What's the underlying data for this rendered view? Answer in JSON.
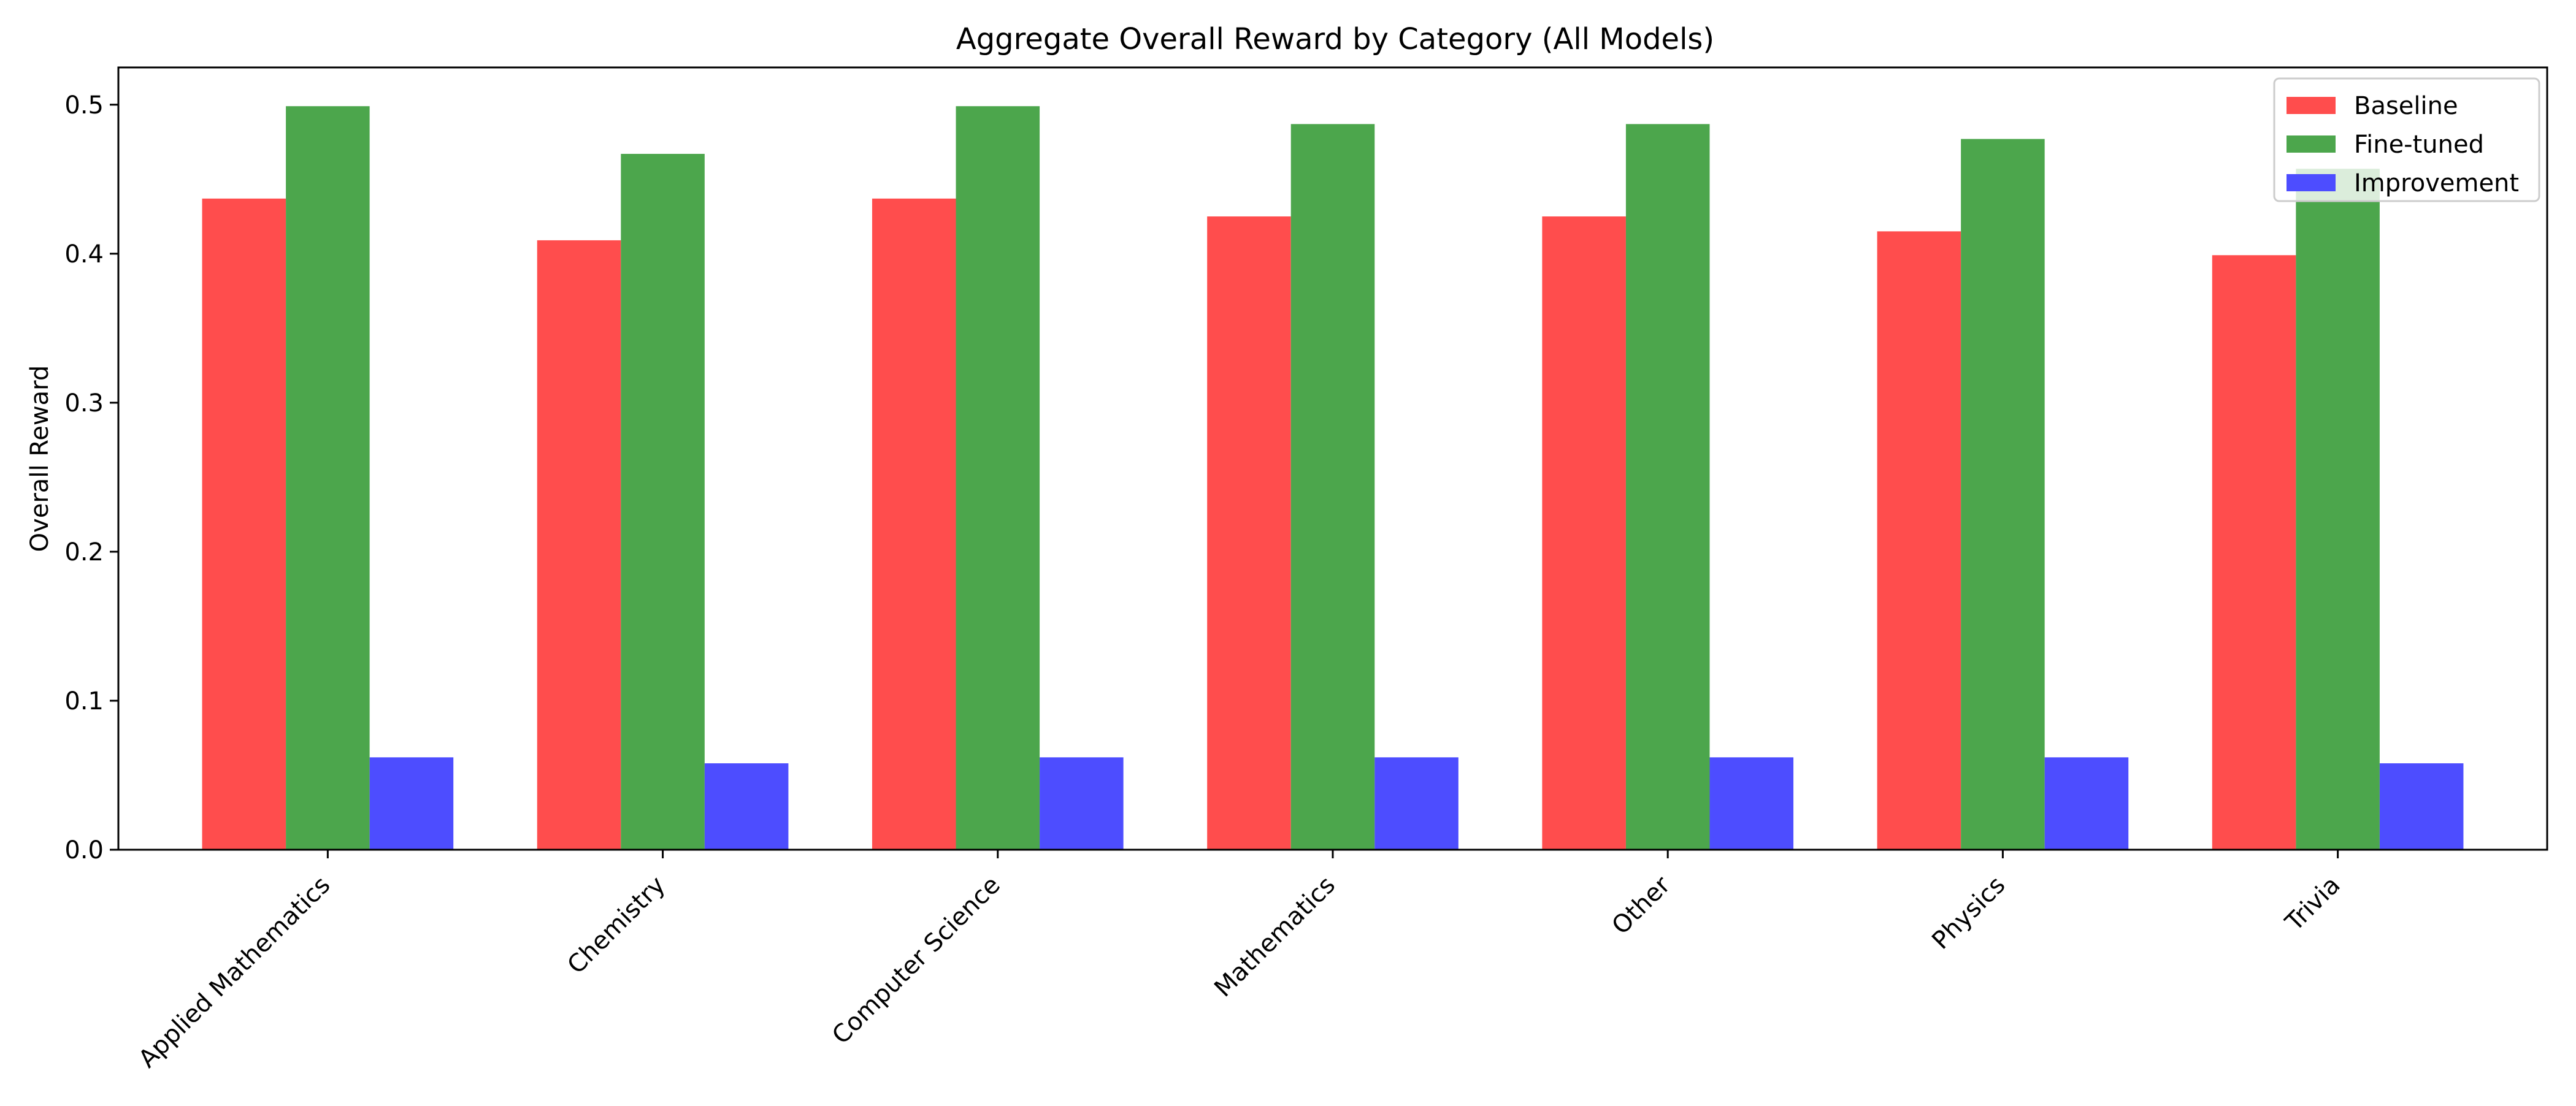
{
  "chart_data": {
    "type": "bar",
    "title": "Aggregate Overall Reward by Category (All Models)",
    "xlabel": "",
    "ylabel": "Overall Reward",
    "ylim": [
      0,
      0.525
    ],
    "yticks": [
      0.0,
      0.1,
      0.2,
      0.3,
      0.4,
      0.5
    ],
    "ytick_labels": [
      "0.0",
      "0.1",
      "0.2",
      "0.3",
      "0.4",
      "0.5"
    ],
    "categories": [
      "Applied Mathematics",
      "Chemistry",
      "Computer Science",
      "Mathematics",
      "Other",
      "Physics",
      "Trivia"
    ],
    "series": [
      {
        "name": "Baseline",
        "color": "#ff4d4d",
        "values": [
          0.437,
          0.409,
          0.437,
          0.425,
          0.425,
          0.415,
          0.399
        ]
      },
      {
        "name": "Fine-tuned",
        "color": "#4ca64c",
        "values": [
          0.499,
          0.467,
          0.499,
          0.487,
          0.487,
          0.477,
          0.457
        ]
      },
      {
        "name": "Improvement",
        "color": "#4d4dff",
        "values": [
          0.062,
          0.058,
          0.062,
          0.062,
          0.062,
          0.062,
          0.058
        ]
      }
    ],
    "legend_position": "top-right",
    "grid": false
  }
}
